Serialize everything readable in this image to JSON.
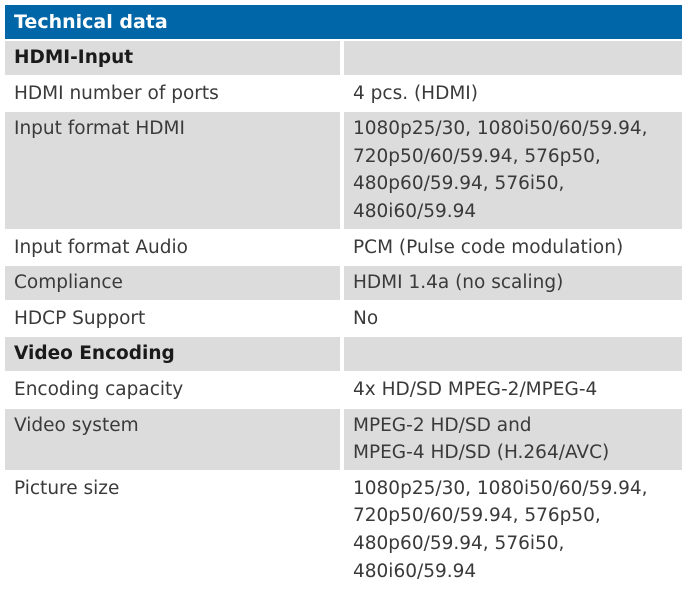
{
  "title": "Technical data",
  "rows": [
    {
      "label": "HDMI-Input",
      "value": [],
      "section": true,
      "shade": true
    },
    {
      "label": "HDMI number of ports",
      "value": [
        "4 pcs. (HDMI)"
      ],
      "shade": false
    },
    {
      "label": "Input format HDMI",
      "value": [
        "1080p25/30, 1080i50/60/59.94,",
        "720p50/60/59.94, 576p50,",
        "480p60/59.94, 576i50,",
        "480i60/59.94"
      ],
      "shade": true
    },
    {
      "label": "Input format Audio",
      "value": [
        "PCM (Pulse code modulation)"
      ],
      "shade": false
    },
    {
      "label": "Compliance",
      "value": [
        "HDMI 1.4a (no scaling)"
      ],
      "shade": true
    },
    {
      "label": "HDCP Support",
      "value": [
        "No"
      ],
      "shade": false
    },
    {
      "label": "Video Encoding",
      "value": [],
      "section": true,
      "shade": true
    },
    {
      "label": "Encoding capacity",
      "value": [
        "4x HD/SD MPEG-2/MPEG-4"
      ],
      "shade": false
    },
    {
      "label": "Video system",
      "value": [
        "MPEG-2 HD/SD and",
        "MPEG-4 HD/SD (H.264/AVC)"
      ],
      "shade": true
    },
    {
      "label": "Picture size",
      "value": [
        "1080p25/30, 1080i50/60/59.94,",
        "720p50/60/59.94, 576p50,",
        "480p60/59.94, 576i50,",
        "480i60/59.94"
      ],
      "shade": false
    }
  ],
  "colors": {
    "header": "#0066a8",
    "shade": "#dcdcdd",
    "text": "#3a3a3a"
  }
}
